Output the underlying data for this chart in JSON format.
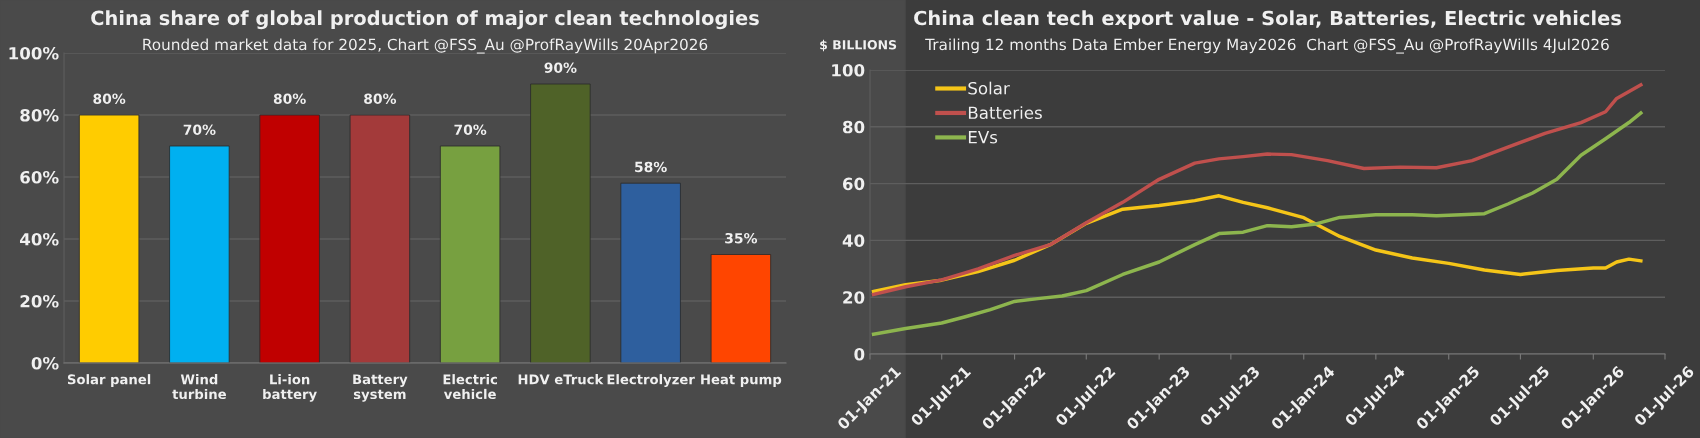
{
  "chart_data": [
    {
      "type": "bar",
      "title": "China share of global production of major clean technologies",
      "subtitle": "Rounded market data for 2025, Chart @FSS_Au @ProfRayWills 20Apr2026",
      "categories": [
        "Solar panel",
        "Wind\nturbine",
        "Li-ion\nbattery",
        "Battery\nsystem",
        "Electric\nvehicle",
        "HDV eTruck",
        "Electrolyzer",
        "Heat pump"
      ],
      "values": [
        80,
        70,
        80,
        80,
        70,
        90,
        58,
        35
      ],
      "colors": [
        "#ffcc00",
        "#00b0f0",
        "#c00000",
        "#a33a3a",
        "#77a040",
        "#4f6228",
        "#2e5f9e",
        "#ff4500"
      ],
      "value_labels": [
        "80%",
        "70%",
        "80%",
        "80%",
        "70%",
        "90%",
        "58%",
        "35%"
      ],
      "ylim": [
        0,
        100
      ],
      "yticks": [
        {
          "value": 0,
          "label": "0%"
        },
        {
          "value": 20,
          "label": "20%"
        },
        {
          "value": 40,
          "label": "40%"
        },
        {
          "value": 60,
          "label": "60%"
        },
        {
          "value": 80,
          "label": "80%"
        },
        {
          "value": 100,
          "label": "100%"
        }
      ],
      "grid": "y"
    },
    {
      "type": "line",
      "title": "China clean tech export value - Solar, Batteries, Electric vehicles",
      "subtitle": "Trailing 12 months Data Ember Energy May2026  Chart @FSS_Au @ProfRayWills 4Jul2026",
      "ylabel": "$ BILLIONS",
      "series": [
        {
          "name": "Solar",
          "color": "#f5c518",
          "x": [
            "2021-01-10",
            "2021-04",
            "2021-07",
            "2021-10",
            "2022-01",
            "2022-04",
            "2022-07",
            "2022-10",
            "2023-01",
            "2023-04",
            "2023-06",
            "2023-08",
            "2023-10",
            "2024-01",
            "2024-04",
            "2024-07",
            "2024-10",
            "2025-01",
            "2025-04",
            "2025-07",
            "2025-10",
            "2026-01",
            "2026-02",
            "2026-03",
            "2026-04",
            "2026-05"
          ],
          "values": [
            22,
            24.4,
            26,
            29,
            33,
            38.5,
            46,
            51,
            52.3,
            54,
            55.7,
            53.4,
            51.5,
            48,
            41.4,
            36.6,
            33.8,
            31.9,
            29.6,
            28,
            29.4,
            30.3,
            30.3,
            32.4,
            33.4,
            32.8
          ]
        },
        {
          "name": "Batteries",
          "color": "#c0504d",
          "x": [
            "2021-01-10",
            "2021-04",
            "2021-07",
            "2021-10",
            "2022-01",
            "2022-04",
            "2022-07",
            "2022-10",
            "2023-01",
            "2023-04",
            "2023-06",
            "2023-08",
            "2023-10",
            "2023-12",
            "2024-03",
            "2024-06",
            "2024-09",
            "2024-12",
            "2025-03",
            "2025-06",
            "2025-09",
            "2025-12",
            "2026-02",
            "2026-03",
            "2026-05"
          ],
          "values": [
            21,
            23.7,
            26.1,
            30,
            34.7,
            38.5,
            46.2,
            53.4,
            61.5,
            67.2,
            68.7,
            69.5,
            70.4,
            70.2,
            68.1,
            65.3,
            65.8,
            65.6,
            68.1,
            72.9,
            77.7,
            81.5,
            85.3,
            90,
            94.8
          ]
        },
        {
          "name": "EVs",
          "color": "#8db54e",
          "x": [
            "2021-01-10",
            "2021-04",
            "2021-07",
            "2021-09",
            "2021-11",
            "2022-01",
            "2022-03",
            "2022-05",
            "2022-07",
            "2022-10",
            "2023-01",
            "2023-04",
            "2023-06",
            "2023-08",
            "2023-10",
            "2023-12",
            "2024-02",
            "2024-04",
            "2024-07",
            "2024-10",
            "2024-12",
            "2025-02",
            "2025-04",
            "2025-06",
            "2025-08",
            "2025-10",
            "2025-12",
            "2026-02",
            "2026-04",
            "2026-05"
          ],
          "values": [
            7,
            9,
            10.9,
            13.2,
            15.6,
            18.5,
            19.5,
            20.4,
            22.3,
            28,
            32.4,
            38.5,
            42.4,
            42.9,
            45.2,
            44.8,
            45.8,
            48.1,
            49,
            49,
            48.7,
            49,
            49.4,
            52.9,
            56.7,
            61.5,
            70,
            75.8,
            81.5,
            84.9
          ]
        }
      ],
      "xlim": [
        "2021-01-01",
        "2026-07-01"
      ],
      "xticks": [
        {
          "value": "2021-01-01",
          "label": "01-Jan-21"
        },
        {
          "value": "2021-07-01",
          "label": "01-Jul-21"
        },
        {
          "value": "2022-01-01",
          "label": "01-Jan-22"
        },
        {
          "value": "2022-07-01",
          "label": "01-Jul-22"
        },
        {
          "value": "2023-01-01",
          "label": "01-Jan-23"
        },
        {
          "value": "2023-07-01",
          "label": "01-Jul-23"
        },
        {
          "value": "2024-01-01",
          "label": "01-Jan-24"
        },
        {
          "value": "2024-07-01",
          "label": "01-Jul-24"
        },
        {
          "value": "2025-01-01",
          "label": "01-Jan-25"
        },
        {
          "value": "2025-07-01",
          "label": "01-Jul-25"
        },
        {
          "value": "2026-01-01",
          "label": "01-Jan-26"
        },
        {
          "value": "2026-07-01",
          "label": "01-Jul-26"
        }
      ],
      "ylim": [
        0,
        100
      ],
      "yticks": [
        0,
        20,
        40,
        60,
        80,
        100
      ],
      "grid": "y",
      "legend": "top left",
      "marker": "none",
      "line_style": "solid"
    }
  ]
}
